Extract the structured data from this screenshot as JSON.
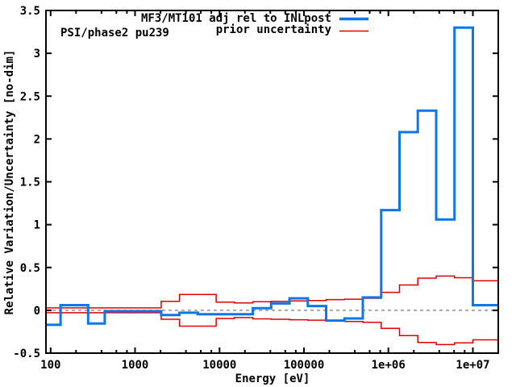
{
  "chart_data": {
    "type": "line",
    "title": "",
    "annotation": "PSI/phase2 pu239",
    "xlabel": "Energy [eV]",
    "ylabel": "Relative Variation/Uncertainty [no-dim]",
    "x_scale": "log",
    "xlim": [
      88,
      20000000
    ],
    "ylim": [
      -0.5,
      3.5
    ],
    "grid": "off",
    "x_major_ticks": [
      100,
      1000,
      10000,
      100000,
      1000000,
      10000000
    ],
    "x_tick_labels": [
      "100",
      "1000",
      "10000",
      "100000",
      "1e+06",
      "1e+07"
    ],
    "x_minor_mults": [
      2,
      4,
      6,
      8
    ],
    "y_major_ticks": [
      -0.5,
      0,
      0.5,
      1,
      1.5,
      2,
      2.5,
      3,
      3.5
    ],
    "y_tick_labels": [
      "-0.5",
      "0",
      "0.5",
      "1",
      "1.5",
      "2",
      "2.5",
      "3",
      "3.5"
    ],
    "zero_line": {
      "value": 0,
      "color": "#909090",
      "dash": "4 4"
    },
    "legend": {
      "position": "top-right-inside",
      "entries": [
        {
          "label": "MF3/MT101 adj rel to INLpost",
          "color": "#0d76e8",
          "line_width": 3.5
        },
        {
          "label": "prior uncertainty",
          "color": "#e00000",
          "line_width": 1.5
        }
      ]
    },
    "series": [
      {
        "name": "MF3/MT101 adj rel to INLpost",
        "style": "step",
        "color": "#0d76e8",
        "line_width": 3,
        "boundaries_ev": [
          88,
          131,
          278,
          437,
          2035,
          3355,
          5530,
          24788,
          40868,
          67379,
          111090,
          183160,
          301970,
          497870,
          820850,
          1353400,
          2231300,
          3678800,
          6065300,
          10000000,
          20000000
        ],
        "values": [
          -0.17,
          0.06,
          -0.155,
          -0.01,
          -0.055,
          -0.028,
          -0.045,
          0.025,
          0.08,
          0.14,
          0.05,
          -0.12,
          -0.095,
          0.15,
          1.17,
          2.08,
          2.33,
          1.06,
          3.3,
          0.06
        ]
      },
      {
        "name": "prior uncertainty",
        "style": "step-band",
        "color": "#e00000",
        "line_width": 1.5,
        "boundaries_ev": [
          88,
          2035,
          3355,
          9119,
          15034,
          24788,
          40868,
          67379,
          111090,
          183160,
          301970,
          497870,
          820850,
          1353400,
          2231300,
          3678800,
          6065300,
          10000000,
          20000000
        ],
        "magnitudes": [
          0.028,
          0.105,
          0.185,
          0.095,
          0.085,
          0.1,
          0.105,
          0.11,
          0.115,
          0.125,
          0.13,
          0.14,
          0.21,
          0.295,
          0.375,
          0.4,
          0.38,
          0.345
        ]
      }
    ],
    "colors": {
      "background": "#ffffff",
      "border": "#000000",
      "text": "#000000"
    }
  }
}
